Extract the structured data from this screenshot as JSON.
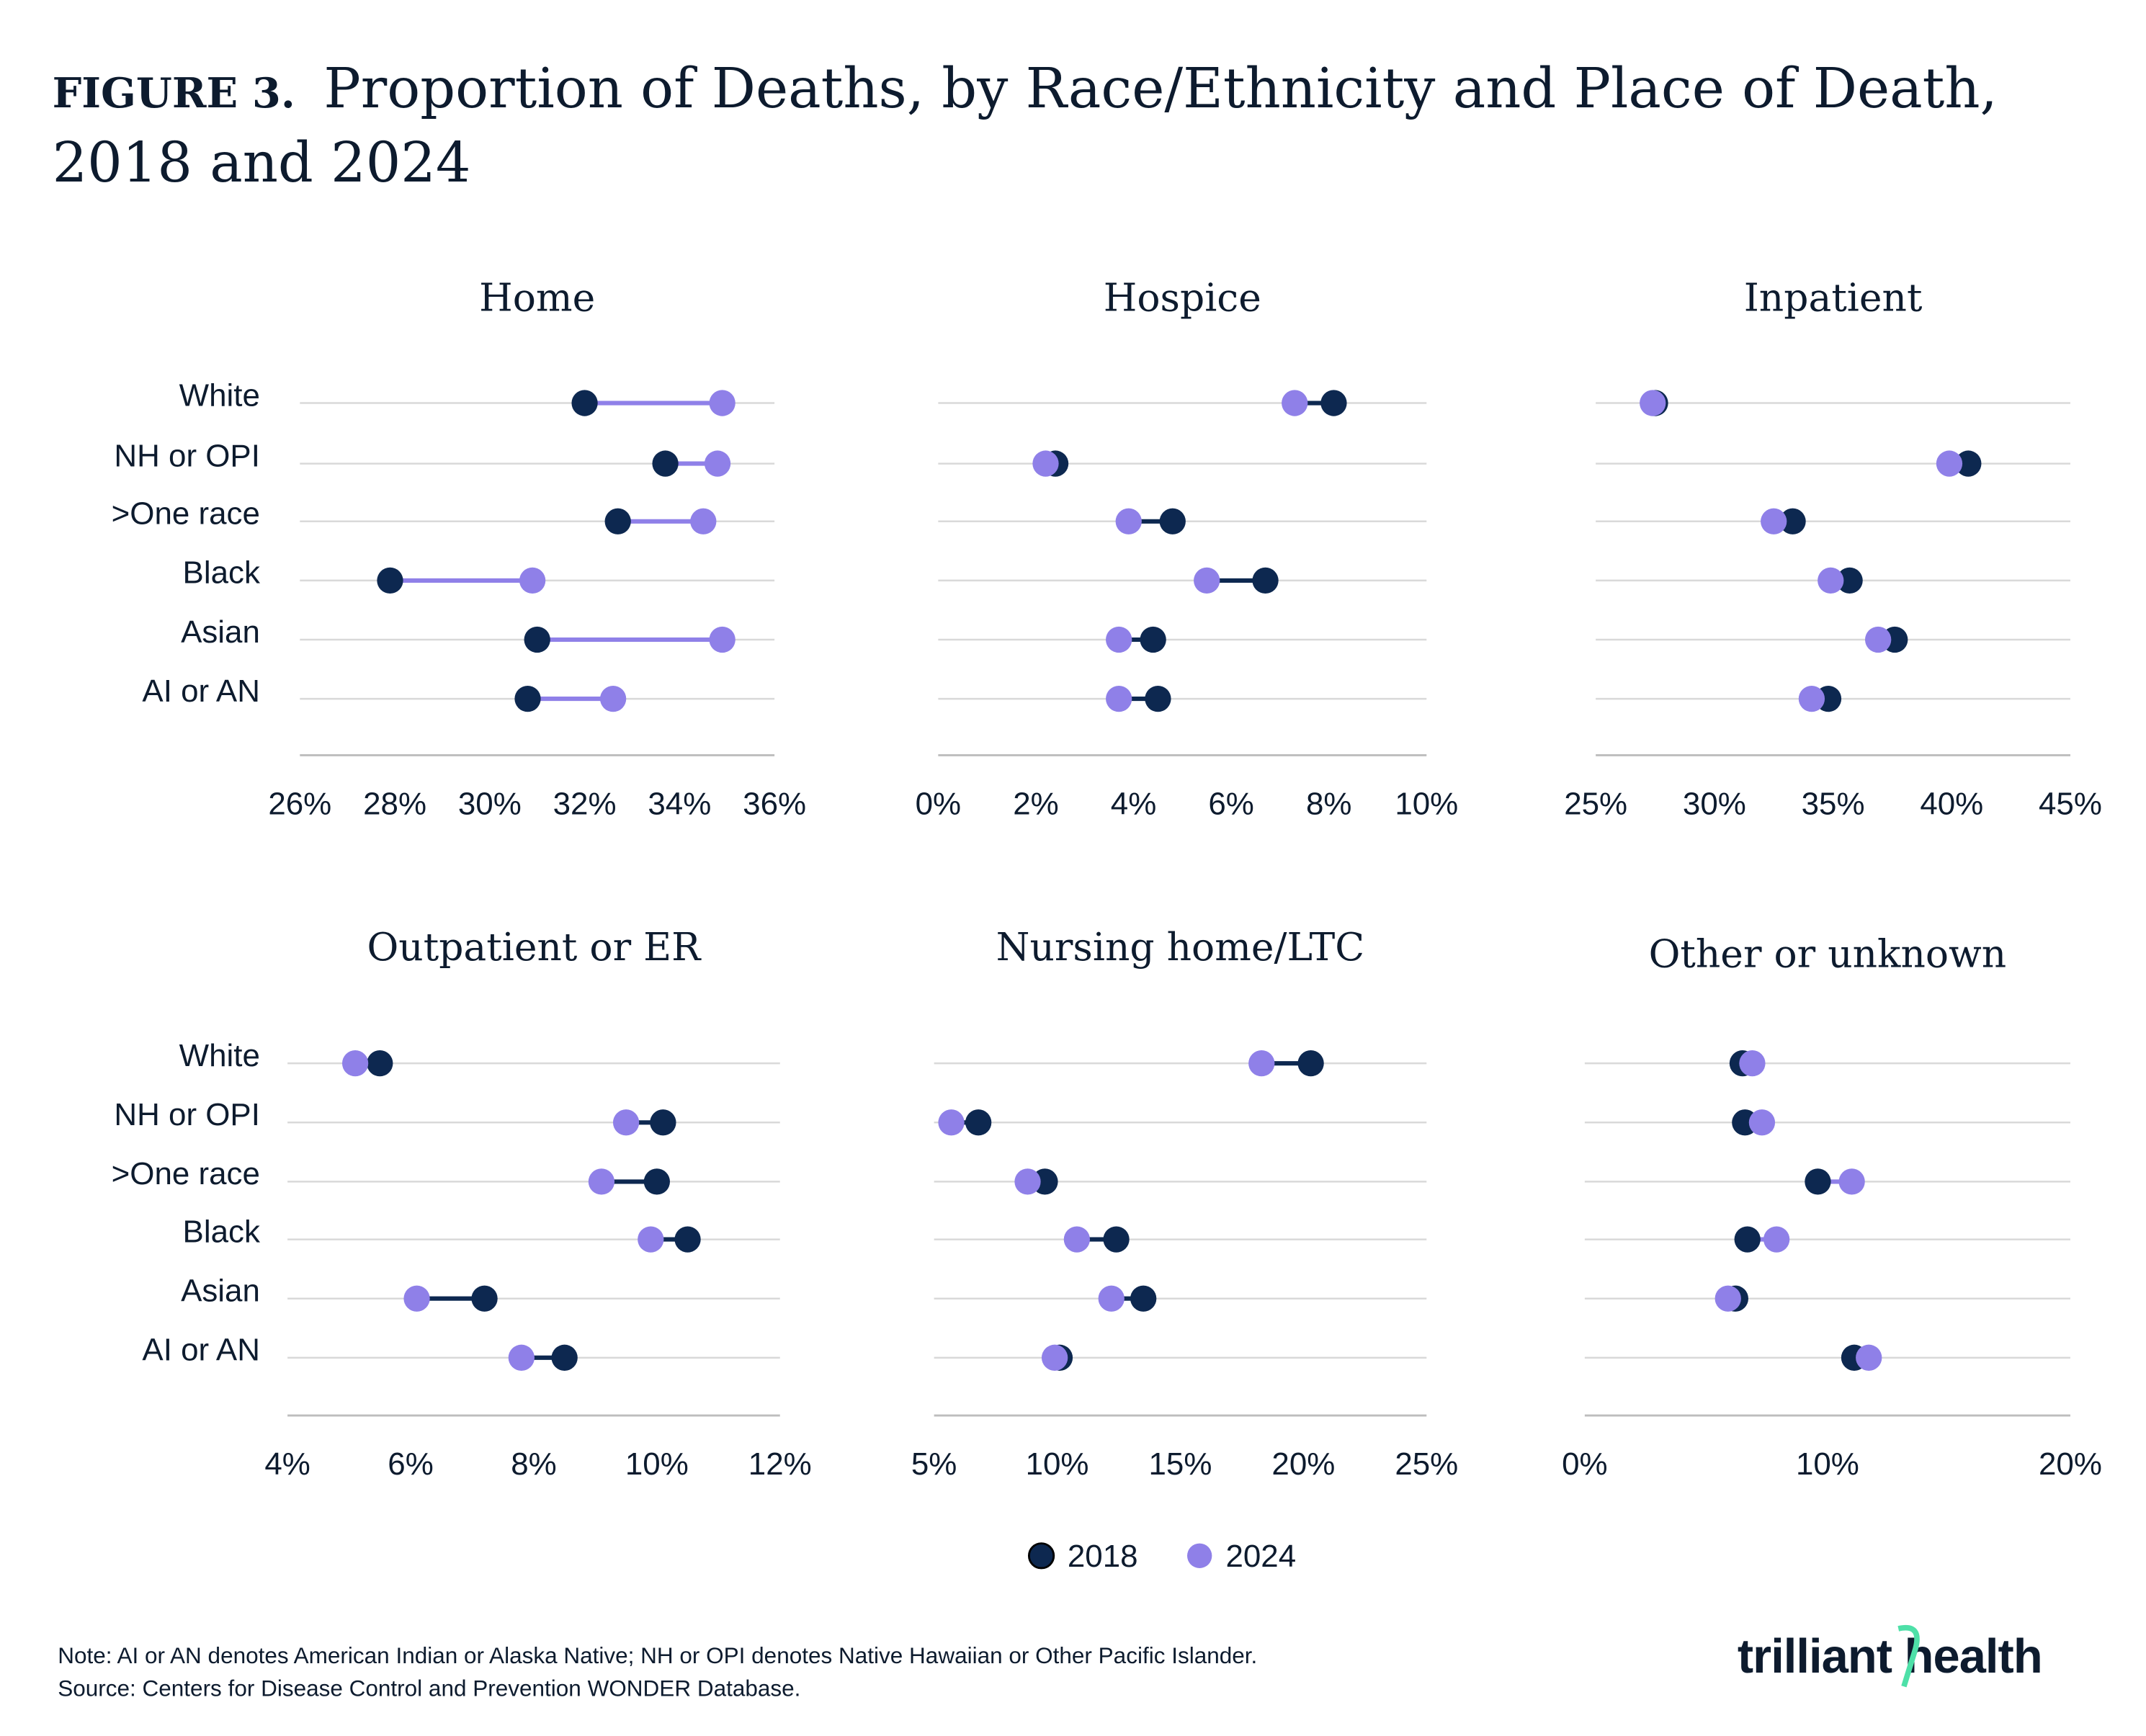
{
  "figure": {
    "label": "FIGURE 3.",
    "title_line1": "Proportion of Deaths, by Race/Ethnicity and Place of Death,",
    "title_line2": "2018 and 2024"
  },
  "colors": {
    "y2018": "#0d2850",
    "y2024": "#8f80e8",
    "grid": "#d9d9d9",
    "text": "#0d1b2e",
    "logo_accent": "#4ee0a8"
  },
  "legend": [
    {
      "label": "2018",
      "color": "#0d2850"
    },
    {
      "label": "2024",
      "color": "#8f80e8"
    }
  ],
  "chart_data": [
    {
      "type": "dumbbell",
      "title": "Home",
      "categories": [
        "White",
        "NH or OPI",
        ">One race",
        "Black",
        "Asian",
        "AI or AN"
      ],
      "xlim": [
        26,
        36
      ],
      "ticks": [
        26,
        28,
        30,
        32,
        34,
        36
      ],
      "tick_labels": [
        "26%",
        "28%",
        "30%",
        "32%",
        "34%",
        "36%"
      ],
      "series": [
        {
          "name": "2018",
          "values": [
            32.0,
            33.7,
            32.7,
            27.9,
            31.0,
            30.8
          ]
        },
        {
          "name": "2024",
          "values": [
            34.9,
            34.8,
            34.5,
            30.9,
            34.9,
            32.6
          ]
        }
      ]
    },
    {
      "type": "dumbbell",
      "title": "Hospice",
      "categories": [
        "White",
        "NH or OPI",
        ">One race",
        "Black",
        "Asian",
        "AI or AN"
      ],
      "xlim": [
        0,
        10
      ],
      "ticks": [
        0,
        2,
        4,
        6,
        8,
        10
      ],
      "tick_labels": [
        "0%",
        "2%",
        "4%",
        "6%",
        "8%",
        "10%"
      ],
      "series": [
        {
          "name": "2018",
          "values": [
            8.1,
            2.4,
            4.8,
            6.7,
            4.4,
            4.5
          ]
        },
        {
          "name": "2024",
          "values": [
            7.3,
            2.2,
            3.9,
            5.5,
            3.7,
            3.7
          ]
        }
      ]
    },
    {
      "type": "dumbbell",
      "title": "Inpatient",
      "categories": [
        "White",
        "NH or OPI",
        ">One race",
        "Black",
        "Asian",
        "AI or AN"
      ],
      "xlim": [
        25,
        45
      ],
      "ticks": [
        25,
        30,
        35,
        40,
        45
      ],
      "tick_labels": [
        "25%",
        "30%",
        "35%",
        "40%",
        "45%"
      ],
      "series": [
        {
          "name": "2018",
          "values": [
            27.5,
            40.7,
            33.3,
            35.7,
            37.6,
            34.8
          ]
        },
        {
          "name": "2024",
          "values": [
            27.4,
            39.9,
            32.5,
            34.9,
            36.9,
            34.1
          ]
        }
      ]
    },
    {
      "type": "dumbbell",
      "title": "Outpatient or ER",
      "categories": [
        "White",
        "NH or OPI",
        ">One race",
        "Black",
        "Asian",
        "AI or AN"
      ],
      "xlim": [
        4,
        12
      ],
      "ticks": [
        4,
        6,
        8,
        10,
        12
      ],
      "tick_labels": [
        "4%",
        "6%",
        "8%",
        "10%",
        "12%"
      ],
      "series": [
        {
          "name": "2018",
          "values": [
            5.5,
            10.1,
            10.0,
            10.5,
            7.2,
            8.5
          ]
        },
        {
          "name": "2024",
          "values": [
            5.1,
            9.5,
            9.1,
            9.9,
            6.1,
            7.8
          ]
        }
      ]
    },
    {
      "type": "dumbbell",
      "title": "Nursing home/LTC",
      "categories": [
        "White",
        "NH or OPI",
        ">One race",
        "Black",
        "Asian",
        "AI or AN"
      ],
      "xlim": [
        5,
        25
      ],
      "ticks": [
        5,
        10,
        15,
        20,
        25
      ],
      "tick_labels": [
        "5%",
        "10%",
        "15%",
        "20%",
        "25%"
      ],
      "series": [
        {
          "name": "2018",
          "values": [
            20.3,
            6.8,
            9.5,
            12.4,
            13.5,
            10.1
          ]
        },
        {
          "name": "2024",
          "values": [
            18.3,
            5.7,
            8.8,
            10.8,
            12.2,
            9.9
          ]
        }
      ]
    },
    {
      "type": "dumbbell",
      "title": "Other or unknown",
      "categories": [
        "White",
        "NH or OPI",
        ">One race",
        "Black",
        "Asian",
        "AI or AN"
      ],
      "xlim": [
        0,
        20
      ],
      "ticks": [
        0,
        10,
        20
      ],
      "tick_labels": [
        "0%",
        "10%",
        "20%"
      ],
      "series": [
        {
          "name": "2018",
          "values": [
            6.5,
            6.6,
            9.6,
            6.7,
            6.2,
            11.1
          ]
        },
        {
          "name": "2024",
          "values": [
            6.9,
            7.3,
            11.0,
            7.9,
            5.9,
            11.7
          ]
        }
      ]
    }
  ],
  "footer": {
    "note": "Note: AI or AN denotes American Indian or Alaska Native; NH or OPI denotes Native Hawaiian or Other Pacific Islander.",
    "source": "Source: Centers for Disease Control and Prevention WONDER Database.",
    "logo": "trilliant health"
  }
}
